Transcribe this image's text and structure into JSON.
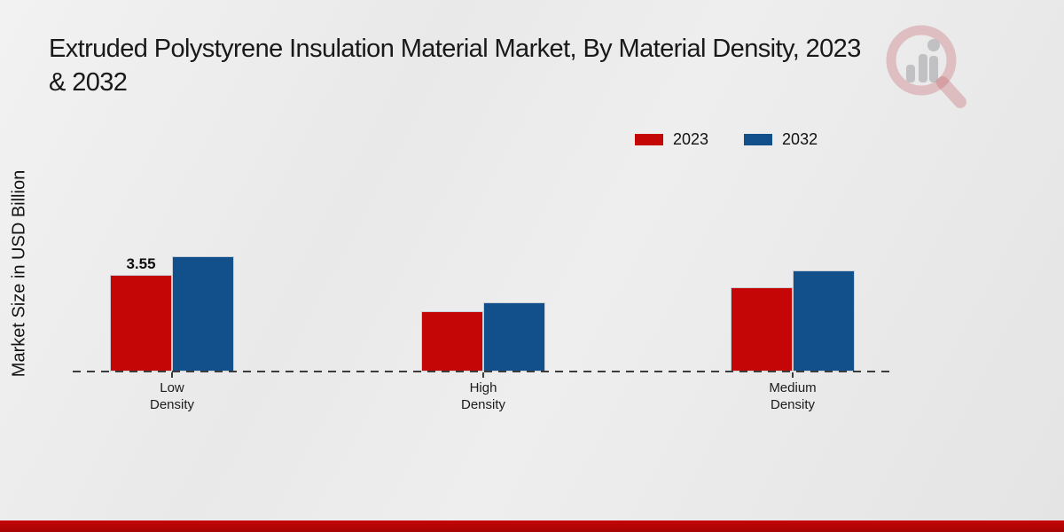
{
  "header": {
    "title_line1": "Extruded Polystyrene Insulation Material Market, By Material Density, 2023",
    "title_line2": "& 2032"
  },
  "chart_data": {
    "type": "bar",
    "title": "Extruded Polystyrene Insulation Material Market, By Material Density, 2023 & 2032",
    "ylabel": "Market Size in USD Billion",
    "xlabel": "",
    "categories": [
      "Low Density",
      "High Density",
      "Medium Density"
    ],
    "series": [
      {
        "name": "2023",
        "color": "#c50606",
        "values": [
          3.55,
          2.2,
          3.1
        ],
        "data_labels": [
          "3.55",
          "",
          ""
        ]
      },
      {
        "name": "2032",
        "color": "#11508a",
        "values": [
          4.25,
          2.55,
          3.7
        ],
        "data_labels": [
          "",
          "",
          ""
        ]
      }
    ],
    "ylim": [
      0,
      4.6
    ],
    "grid": false,
    "legend_position": "top-right",
    "baseline_style": "dashed",
    "only_labeled_value": "3.55"
  },
  "legend": {
    "items": [
      {
        "label": "2023",
        "color": "#c50606"
      },
      {
        "label": "2032",
        "color": "#11508a"
      }
    ]
  },
  "watermark": {
    "name": "market-research-magnifier-logo"
  },
  "colors": {
    "accent_red": "#c50606",
    "accent_blue": "#11508a",
    "footer_bar": "#c60606",
    "background": "#e9e9e9"
  }
}
